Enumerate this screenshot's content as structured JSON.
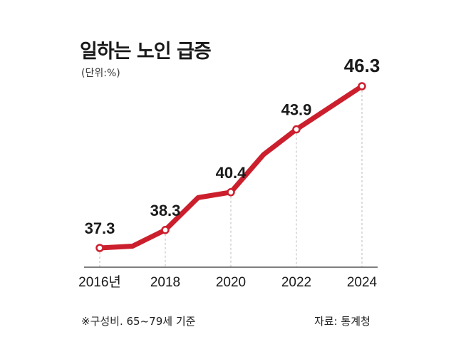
{
  "title": "일하는 노인 급증",
  "unit_label": "(단위:%)",
  "footnote": "※구성비. 65~79세 기준",
  "source": "자료: 통계청",
  "colors": {
    "line": "#cc1f2d",
    "text": "#1a1a1a",
    "axis": "#555555",
    "guide": "#bbbbbb"
  },
  "chart_data": {
    "type": "line",
    "x": [
      2016,
      2017,
      2018,
      2019,
      2020,
      2021,
      2022,
      2023,
      2024
    ],
    "values": [
      37.3,
      37.4,
      38.3,
      40.1,
      40.4,
      42.5,
      43.9,
      45.1,
      46.3
    ],
    "labeled_points": [
      {
        "year": 2016,
        "label": "37.3"
      },
      {
        "year": 2018,
        "label": "38.3"
      },
      {
        "year": 2020,
        "label": "40.4"
      },
      {
        "year": 2022,
        "label": "43.9"
      },
      {
        "year": 2024,
        "label": "46.3"
      }
    ],
    "x_tick_labels": [
      {
        "year": 2016,
        "label": "2016년"
      },
      {
        "year": 2018,
        "label": "2018"
      },
      {
        "year": 2020,
        "label": "2020"
      },
      {
        "year": 2022,
        "label": "2022"
      },
      {
        "year": 2024,
        "label": "2024"
      }
    ]
  }
}
